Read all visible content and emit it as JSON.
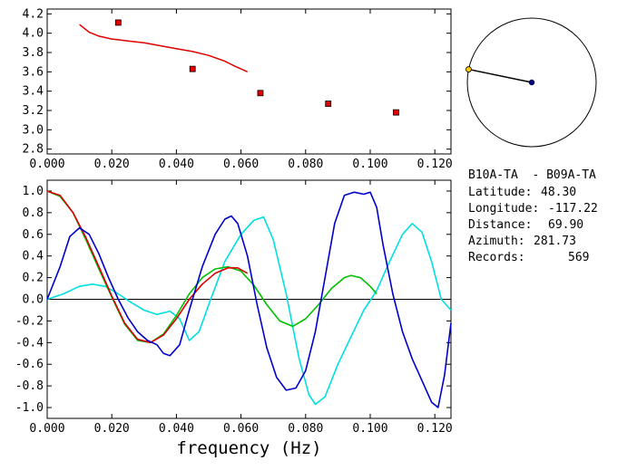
{
  "chart_data": [
    {
      "type": "scatter",
      "xlim": [
        0.0,
        0.125
      ],
      "ylim": [
        2.75,
        4.25
      ],
      "xticks": [
        "0.000",
        "0.020",
        "0.040",
        "0.060",
        "0.080",
        "0.100",
        "0.120"
      ],
      "yticks": [
        "2.8",
        "3.0",
        "3.2",
        "3.4",
        "3.6",
        "3.8",
        "4.0",
        "4.2"
      ],
      "points": {
        "color": "#e00000",
        "x": [
          0.022,
          0.045,
          0.066,
          0.087,
          0.108
        ],
        "y": [
          4.11,
          3.63,
          3.38,
          3.27,
          3.18
        ]
      },
      "curve": {
        "color": "#dd0000",
        "x": [
          0.01,
          0.013,
          0.016,
          0.02,
          0.025,
          0.03,
          0.035,
          0.04,
          0.045,
          0.05,
          0.055,
          0.058,
          0.062
        ],
        "y": [
          4.09,
          4.01,
          3.97,
          3.94,
          3.92,
          3.9,
          3.87,
          3.84,
          3.81,
          3.77,
          3.71,
          3.66,
          3.6
        ]
      }
    },
    {
      "type": "line",
      "xlim": [
        0.0,
        0.125
      ],
      "ylim": [
        -1.1,
        1.1
      ],
      "xticks": [
        "0.000",
        "0.020",
        "0.040",
        "0.060",
        "0.080",
        "0.100",
        "0.120"
      ],
      "yticks": [
        "1.0",
        "0.8",
        "0.6",
        "0.4",
        "0.2",
        "0.0",
        "-0.2",
        "-0.4",
        "-0.6",
        "-0.8",
        "-1.0"
      ],
      "xlabel": "frequency (Hz)",
      "series": [
        {
          "color": "#00e0e0",
          "x": [
            0,
            0.005,
            0.01,
            0.014,
            0.018,
            0.022,
            0.026,
            0.03,
            0.034,
            0.038,
            0.041,
            0.044,
            0.047,
            0.05,
            0.055,
            0.06,
            0.064,
            0.067,
            0.07,
            0.074,
            0.078,
            0.081,
            0.083,
            0.086,
            0.09,
            0.094,
            0.098,
            0.102,
            0.106,
            0.11,
            0.113,
            0.116,
            0.119,
            0.122,
            0.125
          ],
          "y": [
            0,
            0.05,
            0.12,
            0.14,
            0.12,
            0.05,
            -0.03,
            -0.1,
            -0.14,
            -0.11,
            -0.18,
            -0.38,
            -0.3,
            -0.05,
            0.35,
            0.6,
            0.73,
            0.76,
            0.55,
            0.05,
            -0.55,
            -0.88,
            -0.97,
            -0.9,
            -0.6,
            -0.35,
            -0.1,
            0.08,
            0.35,
            0.6,
            0.7,
            0.62,
            0.35,
            0.0,
            -0.1
          ]
        },
        {
          "color": "#00c000",
          "x": [
            0,
            0.004,
            0.008,
            0.012,
            0.016,
            0.02,
            0.024,
            0.028,
            0.032,
            0.036,
            0.04,
            0.044,
            0.048,
            0.052,
            0.056,
            0.06,
            0.064,
            0.068,
            0.072,
            0.076,
            0.08,
            0.084,
            0.088,
            0.092,
            0.094,
            0.097,
            0.1,
            0.102
          ],
          "y": [
            1.0,
            0.95,
            0.8,
            0.55,
            0.28,
            0.02,
            -0.23,
            -0.38,
            -0.4,
            -0.32,
            -0.15,
            0.05,
            0.2,
            0.28,
            0.3,
            0.26,
            0.13,
            -0.05,
            -0.2,
            -0.25,
            -0.18,
            -0.05,
            0.1,
            0.2,
            0.22,
            0.2,
            0.12,
            0.05
          ]
        },
        {
          "color": "#dd0000",
          "x": [
            0,
            0.004,
            0.008,
            0.012,
            0.016,
            0.02,
            0.024,
            0.028,
            0.032,
            0.036,
            0.04,
            0.044,
            0.048,
            0.052,
            0.056,
            0.059,
            0.062
          ],
          "y": [
            1.0,
            0.96,
            0.8,
            0.57,
            0.3,
            0.03,
            -0.22,
            -0.37,
            -0.4,
            -0.33,
            -0.18,
            0.0,
            0.14,
            0.24,
            0.29,
            0.29,
            0.24
          ]
        },
        {
          "color": "#0000cc",
          "x": [
            0,
            0.004,
            0.007,
            0.01,
            0.013,
            0.016,
            0.019,
            0.022,
            0.025,
            0.028,
            0.031,
            0.034,
            0.036,
            0.038,
            0.041,
            0.044,
            0.048,
            0.052,
            0.055,
            0.057,
            0.059,
            0.062,
            0.065,
            0.068,
            0.071,
            0.074,
            0.077,
            0.08,
            0.083,
            0.086,
            0.089,
            0.092,
            0.095,
            0.098,
            0.1,
            0.102,
            0.104,
            0.107,
            0.11,
            0.113,
            0.116,
            0.119,
            0.121,
            0.123,
            0.125
          ],
          "y": [
            0,
            0.3,
            0.58,
            0.66,
            0.6,
            0.42,
            0.2,
            0.0,
            -0.17,
            -0.3,
            -0.38,
            -0.42,
            -0.5,
            -0.52,
            -0.42,
            -0.1,
            0.3,
            0.6,
            0.74,
            0.77,
            0.7,
            0.4,
            -0.05,
            -0.45,
            -0.72,
            -0.84,
            -0.82,
            -0.66,
            -0.3,
            0.2,
            0.7,
            0.96,
            0.99,
            0.97,
            0.99,
            0.85,
            0.5,
            0.05,
            -0.3,
            -0.55,
            -0.75,
            -0.95,
            -1.0,
            -0.7,
            -0.22
          ]
        }
      ]
    }
  ],
  "compass": {
    "azimuth_deg": 281.73
  },
  "info": {
    "station_pair": "B10A-TA  - B09A-TA",
    "latitude_label": "Latitude:",
    "latitude_value": "48.30",
    "longitude_label": "Longitude:",
    "longitude_value": "-117.22",
    "distance_label": "Distance:",
    "distance_value": "69.90",
    "azimuth_label": "Azimuth:",
    "azimuth_value": "281.73",
    "records_label": "Records:",
    "records_value": "569"
  }
}
